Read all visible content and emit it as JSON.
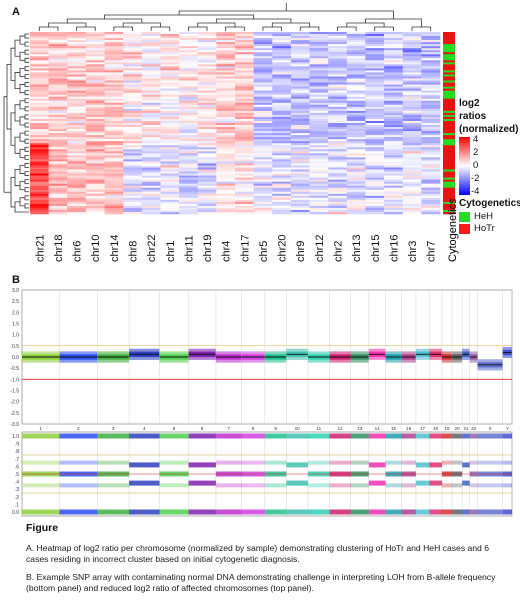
{
  "panelA": {
    "label": "A",
    "columns": [
      "chr21",
      "chr18",
      "chr6",
      "chr10",
      "chr14",
      "chr8",
      "chr22",
      "chr1",
      "chr11",
      "chr19",
      "chr4",
      "chr17",
      "chr5",
      "chr20",
      "chr9",
      "chr12",
      "chr2",
      "chr13",
      "chr15",
      "chr16",
      "chr3",
      "chr7"
    ],
    "cytogenetics_label": "Cytogenetics",
    "legend": {
      "title_lines": [
        "log2",
        "ratios",
        "(normalized)"
      ],
      "ticks": [
        "4",
        "2",
        "0",
        "-2",
        "-4"
      ],
      "colors": {
        "high": "#ff0000",
        "mid": "#ffffff",
        "low": "#0000ff"
      }
    },
    "cyto_legend": {
      "title": "Cytogenetics",
      "items": [
        {
          "label": "HeH",
          "color": "#22dd22"
        },
        {
          "label": "HoTr",
          "color": "#ff1a1a"
        }
      ]
    }
  },
  "panelB": {
    "label": "B",
    "top_y_ticks": [
      "3.0",
      "2.5",
      "2.0",
      "1.5",
      "1.0",
      "0.5",
      "0.0",
      "-0.5",
      "-1.0",
      "-1.5",
      "-2.0",
      "-2.5",
      "-3.0"
    ],
    "bottom_y_ticks": [
      "1.0",
      ".9",
      ".8",
      ".7",
      ".6",
      ".5",
      ".4",
      ".3",
      ".2",
      ".1",
      "0.0"
    ],
    "chromosomes": [
      "1",
      "2",
      "3",
      "4",
      "5",
      "6",
      "7",
      "8",
      "9",
      "10",
      "11",
      "12",
      "13",
      "14",
      "15",
      "16",
      "17",
      "18",
      "19",
      "20",
      "21",
      "22",
      "X",
      "Y"
    ]
  },
  "caption": {
    "title": "Figure",
    "paraA": "A. Heatmap of log2 ratio per chromosome (normalized by sample) demonstrating clustering of HoTr and HeH cases and 6 cases residing in incorrect cluster based on initial cytogenetic diagnosis.",
    "paraB": "B. Example SNP array with contaminating normal DNA demonstrating challenge in interpreting LOH from B-allele frequency (bottom panel) and reduced log2 ratio of affected chromosomes (top panel)."
  }
}
